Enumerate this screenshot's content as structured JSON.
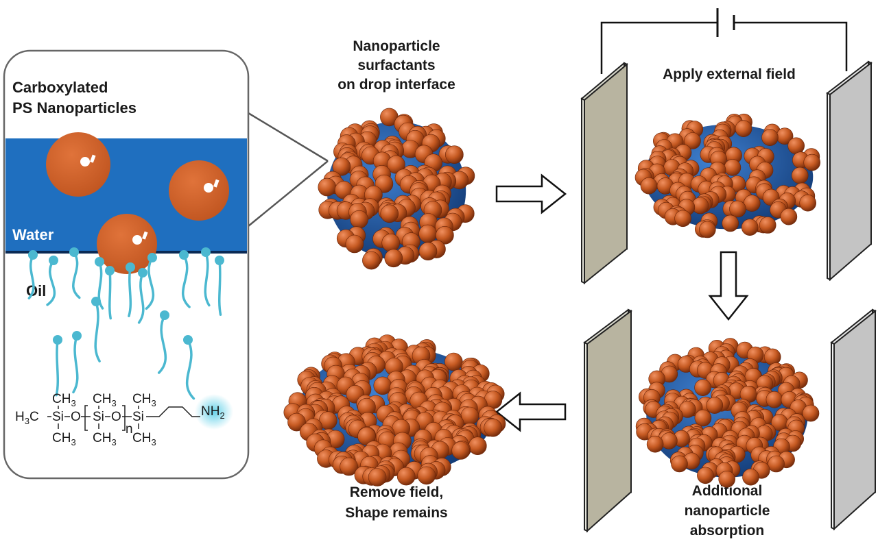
{
  "inset": {
    "title_line1": "Carboxylated",
    "title_line2": "PS Nanoparticles",
    "water_label": "Water",
    "oil_label": "Oil"
  },
  "chemistry": {
    "ch3": "CH",
    "three": "3",
    "h3c_h": "H",
    "h3c_3": "3",
    "h3c_c": "C",
    "si": "Si",
    "o": "O",
    "n": "n",
    "nh": "NH",
    "two": "2"
  },
  "stages": {
    "s1_line1": "Nanoparticle",
    "s1_line2": "surfactants",
    "s1_line3": "on drop interface",
    "s2_line1": "Apply external field",
    "s3_line1": "Additional",
    "s3_line2": "nanoparticle",
    "s3_line3": "absorption",
    "s4_line1": "Remove field,",
    "s4_line2": "Shape remains"
  },
  "colors": {
    "water": "#1f6fbf",
    "particle": "#c65a22",
    "droplet_core": "#1d4f9a",
    "surfactant": "#4bb8d0",
    "plate_left": "#b8b4a0",
    "plate_right": "#c4c4c4"
  }
}
